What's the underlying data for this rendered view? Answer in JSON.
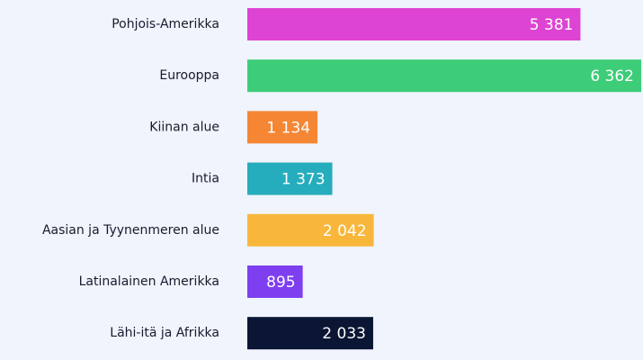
{
  "chart_data": {
    "type": "bar",
    "orientation": "horizontal",
    "categories": [
      "Pohjois-Amerikka",
      "Eurooppa",
      "Kiinan alue",
      "Intia",
      "Aasian ja Tyynenmeren alue",
      "Latinalainen Amerikka",
      "Lähi-itä ja Afrikka"
    ],
    "values": [
      5381,
      6362,
      1134,
      1373,
      2042,
      895,
      2033
    ],
    "value_labels": [
      "5 381",
      "6 362",
      "1 134",
      "1 373",
      "2 042",
      "895",
      "2 033"
    ],
    "colors": [
      "#de44d3",
      "#3dcd78",
      "#f58634",
      "#26adbd",
      "#f8b73b",
      "#7e3ff0",
      "#0b1534"
    ]
  }
}
